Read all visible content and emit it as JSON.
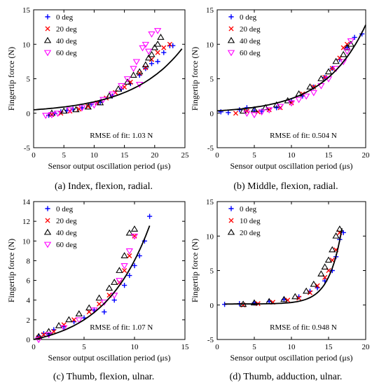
{
  "chart_data": [
    {
      "type": "scatter",
      "caption": "(a) Index, flexion, radial.",
      "xlabel": "Sensor output oscillation period (μs)",
      "ylabel": "Fingertip force (N)",
      "xlim": [
        0,
        25
      ],
      "ylim": [
        -5,
        15
      ],
      "xticks": [
        "0",
        "5",
        "10",
        "15",
        "20",
        "25"
      ],
      "yticks": [
        "-5",
        "0",
        "5",
        "10",
        "15"
      ],
      "rmse": "RMSE of fit: 1.03 N",
      "legend_placement": "top-left",
      "series": [
        {
          "name": "0 deg",
          "color": "#0000ff",
          "marker": "plus",
          "x": [
            2.5,
            3.5,
            4.5,
            5.5,
            6.5,
            8.0,
            9.5,
            11.0,
            13.0,
            14.5,
            16.0,
            17.5,
            18.5,
            19.5,
            20.5,
            21.5,
            22.5,
            23.0
          ],
          "y": [
            -0.3,
            0.0,
            0.2,
            0.4,
            0.6,
            0.8,
            1.3,
            1.6,
            2.5,
            3.5,
            4.3,
            5.5,
            6.5,
            7.2,
            7.5,
            8.8,
            9.8,
            9.8
          ]
        },
        {
          "name": "20 deg",
          "color": "#ff0000",
          "marker": "x",
          "x": [
            3.0,
            4.5,
            6.0,
            7.5,
            9.0,
            10.5,
            12.0,
            13.5,
            15.0,
            16.0,
            17.5,
            18.5,
            19.5,
            20.5,
            21.5,
            22.5
          ],
          "y": [
            -0.2,
            0.0,
            0.3,
            0.6,
            1.0,
            1.5,
            2.2,
            3.0,
            3.8,
            4.5,
            5.8,
            6.6,
            7.8,
            8.8,
            9.5,
            10.0
          ]
        },
        {
          "name": "40 deg",
          "color": "#000000",
          "marker": "triangle-up",
          "x": [
            3.0,
            5.0,
            7.0,
            9.0,
            11.0,
            12.5,
            14.0,
            15.5,
            16.5,
            17.5,
            18.5,
            19.0,
            19.5,
            20.0,
            20.5,
            21.0
          ],
          "y": [
            0.0,
            0.3,
            0.5,
            0.9,
            1.5,
            2.5,
            3.5,
            4.5,
            5.5,
            6.0,
            7.0,
            8.0,
            8.5,
            9.5,
            10.0,
            11.0
          ]
        },
        {
          "name": "60 deg",
          "color": "#ff00ff",
          "marker": "triangle-down",
          "x": [
            2.0,
            3.0,
            4.0,
            6.0,
            8.0,
            10.0,
            11.5,
            13.0,
            14.5,
            15.5,
            16.5,
            17.0,
            17.5,
            18.0,
            18.5,
            19.0,
            19.5,
            20.5
          ],
          "y": [
            -0.3,
            -0.2,
            0.0,
            0.5,
            0.8,
            1.2,
            2.0,
            2.8,
            4.0,
            5.0,
            6.5,
            7.5,
            4.2,
            9.5,
            10.0,
            9.0,
            11.5,
            12.0
          ]
        }
      ],
      "fit": {
        "a": 0.5,
        "b": 0.1195,
        "x0": 0,
        "x1": 24.5
      }
    },
    {
      "type": "scatter",
      "caption": "(b) Middle, flexion, radial.",
      "xlabel": "Sensor output oscillation period (μs)",
      "ylabel": "Fingertip force (N)",
      "xlim": [
        0,
        20
      ],
      "ylim": [
        -5,
        15
      ],
      "xticks": [
        "0",
        "5",
        "10",
        "15",
        "20"
      ],
      "yticks": [
        "-5",
        "0",
        "5",
        "10",
        "15"
      ],
      "rmse": "RMSE of fit: 0.504 N",
      "legend_placement": "top-left",
      "series": [
        {
          "name": "0 deg",
          "color": "#0000ff",
          "marker": "plus",
          "x": [
            0.5,
            1.5,
            3.0,
            4.0,
            5.0,
            6.0,
            8.0,
            10.0,
            11.5,
            13.0,
            14.5,
            15.5,
            16.5,
            17.5,
            18.5,
            19.5
          ],
          "y": [
            0.2,
            0.1,
            0.5,
            0.8,
            0.4,
            0.3,
            0.8,
            1.8,
            2.5,
            3.8,
            5.2,
            6.5,
            7.8,
            9.5,
            11.0,
            11.5
          ]
        },
        {
          "name": "20 deg",
          "color": "#ff0000",
          "marker": "x",
          "x": [
            2.5,
            4.0,
            5.5,
            7.0,
            8.5,
            10.0,
            11.5,
            13.0,
            14.5,
            15.5,
            16.5,
            17.0,
            17.5
          ],
          "y": [
            0.0,
            0.3,
            0.2,
            0.5,
            0.8,
            1.5,
            2.8,
            3.8,
            5.2,
            6.5,
            8.0,
            9.5,
            10.0
          ]
        },
        {
          "name": "40 deg",
          "color": "#000000",
          "marker": "triangle-up",
          "x": [
            3.5,
            5.0,
            6.5,
            8.0,
            9.5,
            11.0,
            12.5,
            14.0,
            15.0,
            16.0,
            17.0,
            17.5,
            18.0
          ],
          "y": [
            0.3,
            0.5,
            0.8,
            1.2,
            1.8,
            2.8,
            3.8,
            5.0,
            6.0,
            7.5,
            8.5,
            9.5,
            10.0
          ]
        },
        {
          "name": "60 deg",
          "color": "#ff00ff",
          "marker": "triangle-down",
          "x": [
            4.0,
            5.0,
            6.0,
            7.0,
            8.5,
            10.0,
            11.0,
            12.0,
            13.0,
            14.0,
            15.0,
            16.0,
            17.0,
            17.5,
            18.0
          ],
          "y": [
            0.0,
            -0.2,
            0.2,
            0.5,
            1.0,
            1.5,
            2.0,
            2.5,
            3.0,
            4.0,
            5.0,
            6.5,
            7.5,
            9.0,
            10.5
          ]
        }
      ],
      "fit": {
        "a": 0.35,
        "b": 0.18,
        "x0": 0,
        "x1": 20
      }
    },
    {
      "type": "scatter",
      "caption": "(c) Thumb, flexion, ulnar.",
      "xlabel": "Sensor output oscillation period (μs)",
      "ylabel": "Fingertip force (N)",
      "xlim": [
        0,
        15
      ],
      "ylim": [
        0,
        14
      ],
      "xticks": [
        "0",
        "5",
        "10",
        "15"
      ],
      "yticks": [
        "0",
        "2",
        "4",
        "6",
        "8",
        "10",
        "12",
        "14"
      ],
      "rmse": "RMSE of fit: 1.07 N",
      "legend_placement": "top-left",
      "series": [
        {
          "name": "0 deg",
          "color": "#0000ff",
          "marker": "plus",
          "x": [
            0.5,
            1.0,
            1.5,
            2.0,
            3.0,
            4.0,
            5.0,
            6.0,
            7.0,
            8.0,
            9.0,
            9.5,
            10.0,
            10.5,
            11.0,
            11.5
          ],
          "y": [
            0.3,
            0.6,
            0.5,
            1.0,
            1.3,
            1.8,
            2.2,
            3.0,
            2.8,
            4.0,
            5.5,
            6.5,
            7.5,
            8.5,
            10.0,
            12.5
          ]
        },
        {
          "name": "20 deg",
          "color": "#ff0000",
          "marker": "x",
          "x": [
            0.5,
            1.0,
            2.0,
            3.0,
            4.0,
            5.5,
            6.5,
            7.5,
            8.5,
            9.0,
            9.5,
            10.0
          ],
          "y": [
            0.2,
            0.5,
            0.8,
            1.5,
            2.0,
            2.8,
            3.6,
            4.5,
            5.8,
            7.0,
            8.5,
            10.5
          ]
        },
        {
          "name": "40 deg",
          "color": "#000000",
          "marker": "triangle-up",
          "x": [
            0.5,
            1.5,
            2.5,
            3.5,
            4.5,
            5.5,
            6.5,
            7.5,
            8.0,
            8.5,
            9.0,
            9.5,
            10.0
          ],
          "y": [
            0.3,
            0.8,
            1.4,
            2.0,
            2.6,
            3.2,
            4.2,
            5.2,
            5.8,
            7.0,
            8.5,
            10.8,
            11.2
          ]
        },
        {
          "name": "60 deg",
          "color": "#ff00ff",
          "marker": "triangle-down",
          "x": [
            0.5,
            1.5,
            3.0,
            4.5,
            6.0,
            7.0,
            8.0,
            8.5,
            9.0,
            9.5,
            10.0
          ],
          "y": [
            0.0,
            0.5,
            1.2,
            2.0,
            3.0,
            3.8,
            4.5,
            6.0,
            7.5,
            9.0,
            10.5
          ]
        }
      ],
      "fit": {
        "a": 1.0,
        "b": 0.22,
        "x0": 0,
        "x1": 11.5,
        "c": -1.0
      }
    },
    {
      "type": "scatter",
      "caption": "(d) Thumb, adduction, ulnar.",
      "xlabel": "Sensor output oscillation period (μs)",
      "ylabel": "Fingertip force (N)",
      "xlim": [
        0,
        20
      ],
      "ylim": [
        -5,
        15
      ],
      "xticks": [
        "0",
        "5",
        "10",
        "15",
        "20"
      ],
      "yticks": [
        "-5",
        "0",
        "5",
        "10",
        "15"
      ],
      "rmse": "RMSE of fit: 0.948 N",
      "legend_placement": "top-left",
      "series": [
        {
          "name": "0 deg",
          "color": "#0000ff",
          "marker": "plus",
          "x": [
            1.0,
            3.0,
            5.0,
            7.0,
            9.0,
            11.0,
            12.5,
            13.5,
            14.5,
            15.5,
            16.0,
            16.5,
            17.0
          ],
          "y": [
            0.1,
            0.2,
            0.3,
            0.5,
            0.8,
            1.2,
            2.0,
            2.5,
            3.5,
            5.0,
            7.0,
            9.5,
            10.5
          ]
        },
        {
          "name": "10 deg",
          "color": "#ff0000",
          "marker": "x",
          "x": [
            3.5,
            5.5,
            7.5,
            9.5,
            11.0,
            12.5,
            13.5,
            14.5,
            15.0,
            15.5,
            16.0,
            16.5
          ],
          "y": [
            0.0,
            0.2,
            0.4,
            0.7,
            1.0,
            1.8,
            2.8,
            4.0,
            5.0,
            6.5,
            8.0,
            10.5
          ]
        },
        {
          "name": "20 deg",
          "color": "#000000",
          "marker": "triangle-up",
          "x": [
            3.5,
            5.0,
            7.0,
            9.0,
            10.5,
            12.0,
            13.0,
            14.0,
            14.5,
            15.0,
            15.5,
            16.0,
            16.5
          ],
          "y": [
            0.1,
            0.3,
            0.5,
            0.8,
            1.2,
            2.0,
            3.0,
            4.5,
            5.5,
            6.5,
            8.0,
            10.0,
            11.0
          ]
        }
      ],
      "fit": {
        "a": 0.0007,
        "b": 0.575,
        "x0": 1.0,
        "x1": 16.8,
        "c": 0.15
      }
    }
  ]
}
